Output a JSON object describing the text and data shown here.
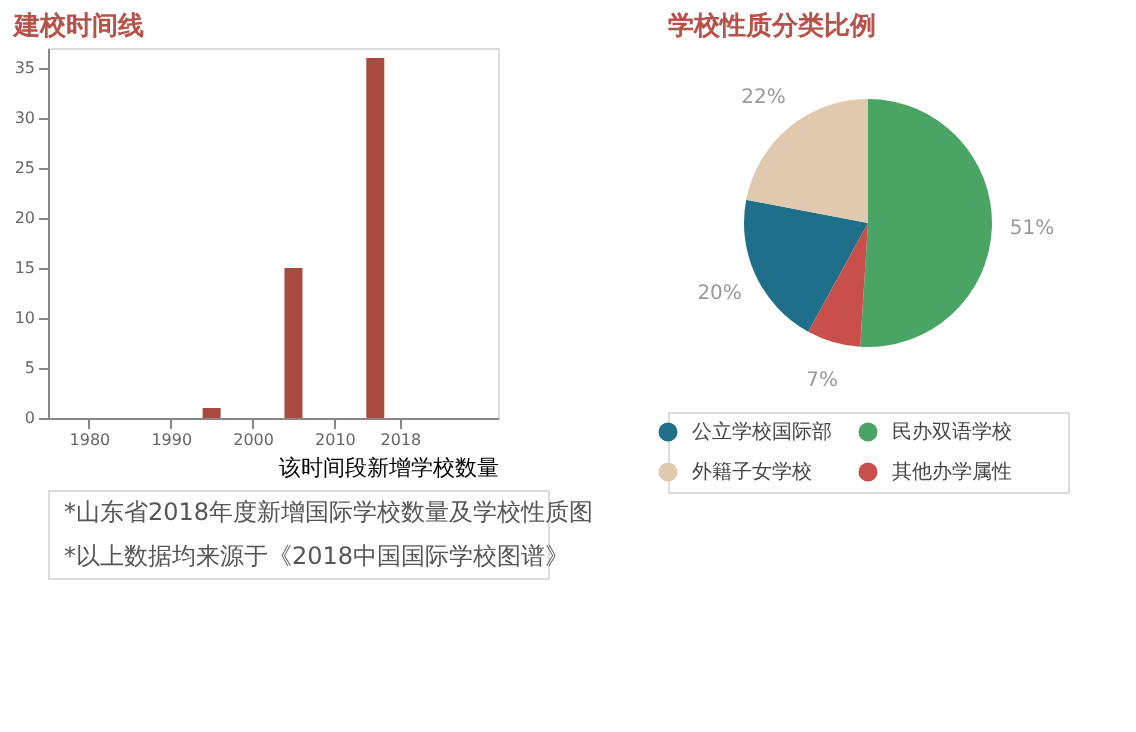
{
  "chart_data": [
    {
      "type": "bar",
      "title": "建校时间线",
      "xlabel": "该时间段新增学校数量",
      "x": [
        1995,
        2005,
        2015
      ],
      "values": [
        1,
        15,
        36
      ],
      "color": "#a94a3e",
      "xlim": [
        1975,
        2030
      ],
      "xticks": [
        1980,
        1990,
        2000,
        2010,
        2018
      ],
      "ylim": [
        0,
        37
      ],
      "yticks": [
        0,
        5,
        10,
        15,
        20,
        25,
        30,
        35
      ],
      "grid": false,
      "annotations": [
        "*山东省2018年度新增国际学校数量及学校性质图",
        "*以上数据均来源于《2018中国国际学校图谱》"
      ]
    },
    {
      "type": "pie",
      "title": "学校性质分类比例",
      "categories": [
        "公立学校国际部",
        "民办双语学校",
        "外籍子女学校",
        "其他办学属性"
      ],
      "values": [
        20,
        51,
        22,
        7
      ],
      "colors": [
        "#1f6f8b",
        "#4aa564",
        "#e0c9ae",
        "#c9504a"
      ],
      "value_labels": [
        "20%",
        "51%",
        "22%",
        "7%"
      ],
      "legend": "bottom"
    }
  ]
}
